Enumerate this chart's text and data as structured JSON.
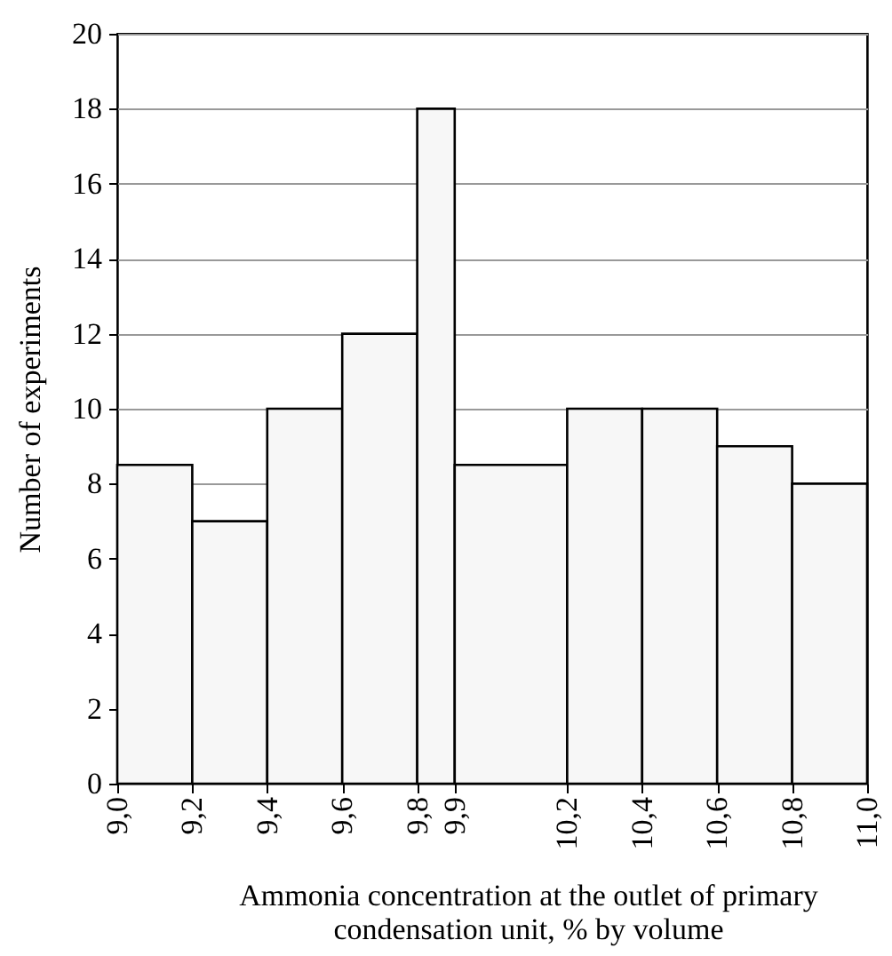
{
  "chart_data": {
    "type": "histogram",
    "xlabel": "Ammonia concentration at the outlet of primary condensation unit, % by volume",
    "ylabel": "Number of experiments",
    "bins": [
      9.0,
      9.2,
      9.4,
      9.6,
      9.8,
      9.9,
      10.2,
      10.4,
      10.6,
      10.8,
      11.0
    ],
    "values": [
      8.5,
      7,
      10,
      12,
      18,
      8.5,
      10,
      10,
      9,
      8
    ],
    "color": "#f7f7f7",
    "xlim": [
      9.0,
      11.0
    ],
    "xticks": [
      {
        "value": 9.0,
        "label": "9,0"
      },
      {
        "value": 9.2,
        "label": "9,2"
      },
      {
        "value": 9.4,
        "label": "9,4"
      },
      {
        "value": 9.6,
        "label": "9,6"
      },
      {
        "value": 9.8,
        "label": "9,8"
      },
      {
        "value": 9.9,
        "label": "9,9"
      },
      {
        "value": 10.2,
        "label": "10,2"
      },
      {
        "value": 10.4,
        "label": "10,4"
      },
      {
        "value": 10.6,
        "label": "10,6"
      },
      {
        "value": 10.8,
        "label": "10,8"
      },
      {
        "value": 11.0,
        "label": "11,0"
      }
    ],
    "ylim": [
      0,
      20
    ],
    "yticks": [
      0,
      2,
      4,
      6,
      8,
      10,
      12,
      14,
      16,
      18,
      20
    ],
    "grid": "y"
  }
}
